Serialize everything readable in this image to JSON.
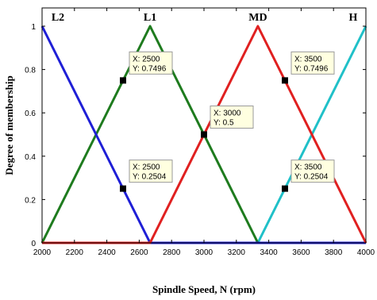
{
  "chart_data": {
    "type": "line",
    "title": "",
    "xlabel": "Spindle Speed, N (rpm)",
    "ylabel": "Degree of membership",
    "xlim": [
      2000,
      4000
    ],
    "ylim": [
      0,
      1
    ],
    "xticks": [
      2000,
      2200,
      2400,
      2600,
      2800,
      3000,
      3200,
      3400,
      3600,
      3800,
      4000
    ],
    "yticks": [
      0,
      0.2,
      0.4,
      0.6,
      0.8,
      1
    ],
    "grid": false,
    "series": [
      {
        "name": "L2",
        "color": "#1f1fd6",
        "x": [
          2000,
          2667,
          4000
        ],
        "y": [
          1,
          0,
          0
        ]
      },
      {
        "name": "L1",
        "color": "#1e7b1e",
        "x": [
          2000,
          2667,
          3333,
          4000
        ],
        "y": [
          0,
          1,
          0,
          0
        ]
      },
      {
        "name": "MD",
        "color": "#e02020",
        "x": [
          2000,
          2667,
          3333,
          4000
        ],
        "y": [
          0,
          0,
          1,
          0
        ]
      },
      {
        "name": "H",
        "color": "#20c0c8",
        "x": [
          2000,
          3333,
          4000
        ],
        "y": [
          0,
          0,
          1
        ]
      }
    ],
    "annotations": [
      {
        "x": 2500,
        "y": 0.7496,
        "label_x": "X: 2500",
        "label_y": "Y: 0.7496"
      },
      {
        "x": 2500,
        "y": 0.2504,
        "label_x": "X: 2500",
        "label_y": "Y: 0.2504"
      },
      {
        "x": 3000,
        "y": 0.5,
        "label_x": "X: 3000",
        "label_y": "Y: 0.5"
      },
      {
        "x": 3500,
        "y": 0.7496,
        "label_x": "X: 3500",
        "label_y": "Y: 0.7496"
      },
      {
        "x": 3500,
        "y": 0.2504,
        "label_x": "X: 3500",
        "label_y": "Y: 0.2504"
      }
    ]
  }
}
